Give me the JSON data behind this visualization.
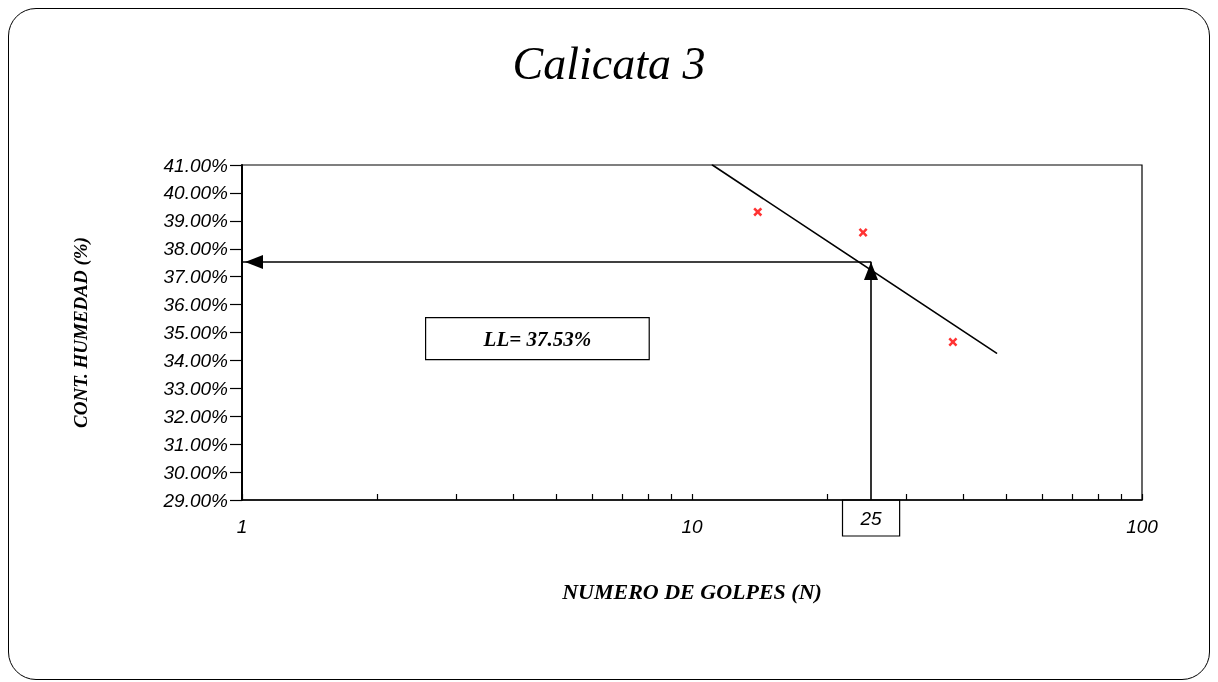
{
  "chart_data": {
    "type": "scatter",
    "title": "Calicata 3",
    "xlabel": "NUMERO DE GOLPES (N)",
    "ylabel": "CONT. HUMEDAD (%)",
    "log": "x",
    "xlim": [
      1,
      100
    ],
    "xticks": [
      1,
      {
        "value": 2,
        "label": null
      },
      {
        "value": 3,
        "label": null
      },
      {
        "value": 4,
        "label": null
      },
      {
        "value": 5,
        "label": null
      },
      {
        "value": 6,
        "label": null
      },
      {
        "value": 7,
        "label": null
      },
      {
        "value": 8,
        "label": null
      },
      {
        "value": 9,
        "label": null
      },
      10,
      {
        "value": 20,
        "label": null
      },
      {
        "value": 30,
        "label": null
      },
      {
        "value": 40,
        "label": null
      },
      {
        "value": 50,
        "label": null
      },
      {
        "value": 60,
        "label": null
      },
      {
        "value": 70,
        "label": null
      },
      {
        "value": 80,
        "label": null
      },
      {
        "value": 90,
        "label": null
      },
      100
    ],
    "ylim": [
      29,
      41
    ],
    "yticks": [
      {
        "value": 29,
        "label": "29.00%"
      },
      {
        "value": 30,
        "label": "30.00%"
      },
      {
        "value": 31,
        "label": "31.00%"
      },
      {
        "value": 32,
        "label": "32.00%"
      },
      {
        "value": 33,
        "label": "33.00%"
      },
      {
        "value": 34,
        "label": "34.00%"
      },
      {
        "value": 35,
        "label": "35.00%"
      },
      {
        "value": 36,
        "label": "36.00%"
      },
      {
        "value": 37,
        "label": "37.00%"
      },
      {
        "value": 38,
        "label": "38.00%"
      },
      {
        "value": 39,
        "label": "39.00%"
      },
      {
        "value": 40,
        "label": "40.00%"
      },
      {
        "value": 41,
        "label": "41.00%"
      }
    ],
    "series": [
      {
        "type": "scatter",
        "x": [
          14,
          24,
          38
        ],
        "values": [
          39.32,
          38.58,
          34.66
        ],
        "color": "#ff0000",
        "marker": "cross"
      },
      {
        "type": "line",
        "x": [
          11.1,
          47.5
        ],
        "values": [
          41.0,
          34.26
        ],
        "color": "#000000",
        "marker": "none",
        "line_style": "solid"
      }
    ],
    "ref_lines": [
      {
        "axis": "x",
        "value": 25,
        "label": "25",
        "color": "#000000"
      },
      {
        "axis": "y",
        "value": 37.53,
        "color": "#000000"
      }
    ],
    "annotations": [
      "LL= 37.53%"
    ]
  }
}
